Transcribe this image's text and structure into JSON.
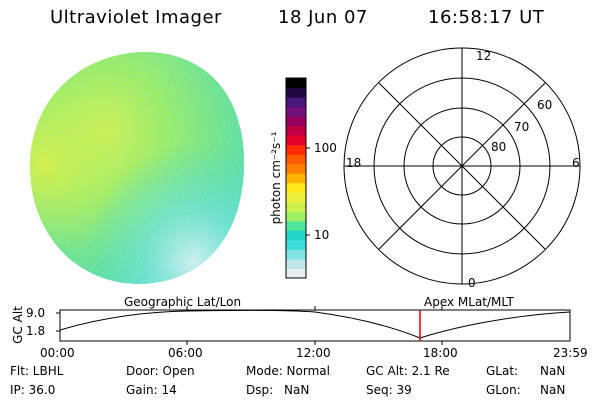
{
  "header": {
    "instrument": "Ultraviolet Imager",
    "date": "18 Jun 07",
    "time": "16:58:17 UT"
  },
  "colorbar": {
    "label": "photon cm⁻²s⁻¹",
    "ticks": [
      "100",
      "10"
    ],
    "colors": [
      "#e9eef0",
      "#bfe6e8",
      "#7fe2e0",
      "#3fdcdc",
      "#21d6c8",
      "#4fe69a",
      "#9ff066",
      "#cdf04a",
      "#ecf03a",
      "#ffe81a",
      "#ffb400",
      "#ff8000",
      "#ff5a00",
      "#ff2a00",
      "#e8002a",
      "#c00040",
      "#980060",
      "#70107a",
      "#4a1878",
      "#200840",
      "#000000"
    ]
  },
  "polar": {
    "lat_labels": [
      "60",
      "70",
      "80"
    ],
    "mlt_labels": [
      "12",
      "18",
      "6",
      "0"
    ]
  },
  "timeline": {
    "y_axis_label": "GC Alt",
    "y_ticks": [
      "9.0",
      "1.8"
    ],
    "left_title": "Geographic Lat/Lon",
    "right_title": "Apex MLat/MLT",
    "x_ticks": [
      "00:00",
      "06:00",
      "12:00",
      "18:00",
      "23:59"
    ],
    "marker_color": "#e00000"
  },
  "info": {
    "row1": {
      "filter": "Flt: LBHL",
      "door": "Door: Open",
      "mode": "Mode: Normal",
      "gc_alt": "GC Alt: 2.1 Re",
      "glat_label": "GLat:",
      "glat_value": "NaN"
    },
    "row2": {
      "ip": "IP: 36.0",
      "gain": "Gain: 14",
      "dsp_label": "Dsp:",
      "dsp_value": "NaN",
      "seq": "Seq: 39",
      "glon_label": "GLon:",
      "glon_value": "NaN"
    }
  }
}
